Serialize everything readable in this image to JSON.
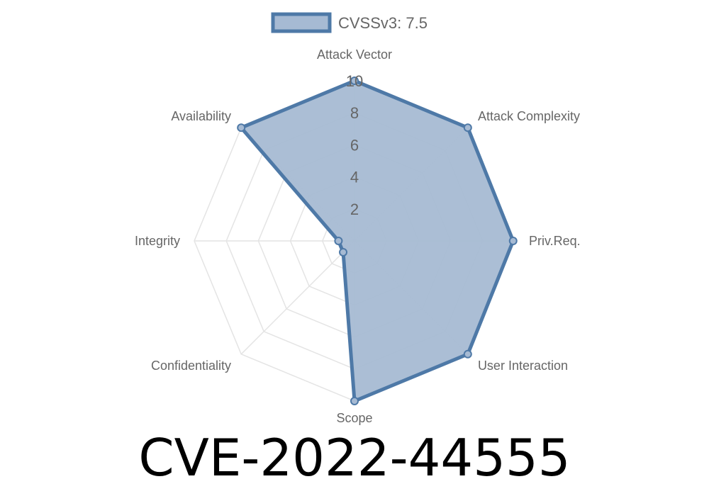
{
  "chart_data": {
    "type": "radar",
    "categories": [
      "Attack Vector",
      "Attack Complexity",
      "Priv.Req.",
      "User Interaction",
      "Scope",
      "Confidentiality",
      "Integrity",
      "Availability"
    ],
    "series": [
      {
        "name": "CVSSv3: 7.5",
        "values": [
          10,
          10,
          9.9,
          10,
          10,
          1,
          1,
          10
        ]
      }
    ],
    "rlim": [
      0,
      10
    ],
    "ticks": [
      "2",
      "4",
      "6",
      "8",
      "10"
    ],
    "grid": true,
    "legend": "top",
    "colors": {
      "fill": "#a6bad3",
      "line": "#4e79a7"
    }
  },
  "title": "CVE-2022-44555"
}
